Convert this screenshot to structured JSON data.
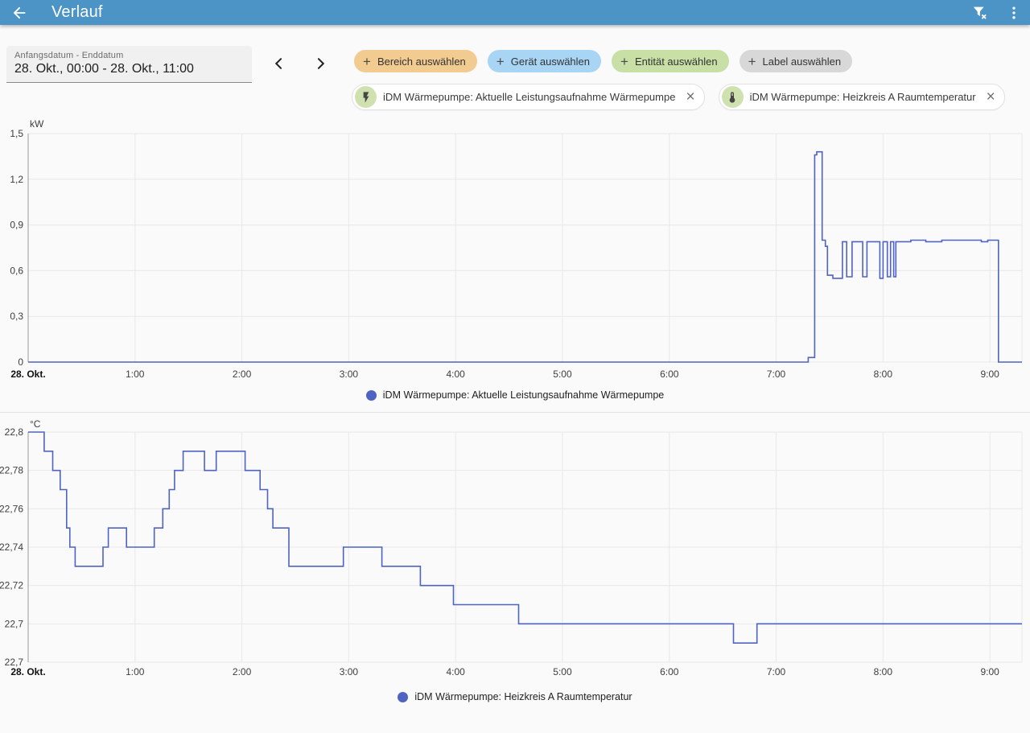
{
  "header": {
    "title": "Verlauf",
    "icons": {
      "back": "arrow-left",
      "filter": "filter-remove",
      "menu": "dots-vertical"
    }
  },
  "toolbar": {
    "date_label": "Anfangsdatum - Enddatum",
    "date_value": "28. Okt., 00:00 - 28. Okt., 11:00",
    "prev_icon": "chevron-left",
    "next_icon": "chevron-right",
    "filter_chips": [
      {
        "label": "Bereich auswählen",
        "color": "#f2cb90",
        "plus": "+"
      },
      {
        "label": "Gerät auswählen",
        "color": "#a9d5f5",
        "plus": "+"
      },
      {
        "label": "Entität auswählen",
        "color": "#c8e0a6",
        "plus": "+"
      },
      {
        "label": "Label auswählen",
        "color": "#d8d8d8",
        "plus": "+"
      }
    ],
    "entity_chips": [
      {
        "icon": "flash",
        "label": "iDM Wärmepumpe: Aktuelle Leistungsaufnahme Wärmepumpe",
        "close": "×",
        "icon_bg": "#cfe1ae"
      },
      {
        "icon": "thermometer",
        "label": "iDM Wärmepumpe: Heizkreis A Raumtemperatur",
        "close": "×",
        "icon_bg": "#cfe1ae"
      }
    ]
  },
  "chart_data": [
    {
      "type": "line",
      "legend": "iDM Wärmepumpe: Aktuelle Leistungsaufnahme Wärmepumpe",
      "unit": "kW",
      "color": "#4f63c2",
      "xlim": [
        0,
        9.3
      ],
      "ylim": [
        0,
        1.5
      ],
      "grid": true,
      "legend_position": "bottom",
      "yticks": [
        {
          "v": 0,
          "label": "0"
        },
        {
          "v": 0.3,
          "label": "0,3"
        },
        {
          "v": 0.6,
          "label": "0,6"
        },
        {
          "v": 0.9,
          "label": "0,9"
        },
        {
          "v": 1.2,
          "label": "1,2"
        },
        {
          "v": 1.5,
          "label": "1,5"
        }
      ],
      "xticks": [
        {
          "v": 0,
          "label": "28. Okt.",
          "bold": true
        },
        {
          "v": 1,
          "label": "1:00"
        },
        {
          "v": 2,
          "label": "2:00"
        },
        {
          "v": 3,
          "label": "3:00"
        },
        {
          "v": 4,
          "label": "4:00"
        },
        {
          "v": 5,
          "label": "5:00"
        },
        {
          "v": 6,
          "label": "6:00"
        },
        {
          "v": 7,
          "label": "7:00"
        },
        {
          "v": 8,
          "label": "8:00"
        },
        {
          "v": 9,
          "label": "9:00"
        }
      ],
      "series": [
        [
          0,
          0
        ],
        [
          7.3,
          0.03
        ],
        [
          7.36,
          1.36
        ],
        [
          7.38,
          1.38
        ],
        [
          7.43,
          0.8
        ],
        [
          7.46,
          0.76
        ],
        [
          7.48,
          0.57
        ],
        [
          7.53,
          0.55
        ],
        [
          7.62,
          0.79
        ],
        [
          7.66,
          0.56
        ],
        [
          7.71,
          0.79
        ],
        [
          7.81,
          0.56
        ],
        [
          7.85,
          0.79
        ],
        [
          7.97,
          0.55
        ],
        [
          8.0,
          0.79
        ],
        [
          8.04,
          0.56
        ],
        [
          8.07,
          0.79
        ],
        [
          8.1,
          0.56
        ],
        [
          8.12,
          0.79
        ],
        [
          8.26,
          0.8
        ],
        [
          8.4,
          0.79
        ],
        [
          8.55,
          0.8
        ],
        [
          8.92,
          0.79
        ],
        [
          8.98,
          0.8
        ],
        [
          9.08,
          0
        ],
        [
          9.3,
          0
        ]
      ]
    },
    {
      "type": "line",
      "legend": "iDM Wärmepumpe: Heizkreis A Raumtemperatur",
      "unit": "°C",
      "color": "#4f63c2",
      "xlim": [
        0,
        9.3
      ],
      "ylim": [
        22.68,
        22.8
      ],
      "grid": true,
      "legend_position": "bottom",
      "yticks": [
        {
          "v": 22.68,
          "label": "22,7"
        },
        {
          "v": 22.7,
          "label": "22,7"
        },
        {
          "v": 22.72,
          "label": "22,72"
        },
        {
          "v": 22.74,
          "label": "22,74"
        },
        {
          "v": 22.76,
          "label": "22,76"
        },
        {
          "v": 22.78,
          "label": "22,78"
        },
        {
          "v": 22.8,
          "label": "22,8"
        }
      ],
      "xticks": [
        {
          "v": 0,
          "label": "28. Okt.",
          "bold": true
        },
        {
          "v": 1,
          "label": "1:00"
        },
        {
          "v": 2,
          "label": "2:00"
        },
        {
          "v": 3,
          "label": "3:00"
        },
        {
          "v": 4,
          "label": "4:00"
        },
        {
          "v": 5,
          "label": "5:00"
        },
        {
          "v": 6,
          "label": "6:00"
        },
        {
          "v": 7,
          "label": "7:00"
        },
        {
          "v": 8,
          "label": "8:00"
        },
        {
          "v": 9,
          "label": "9:00"
        }
      ],
      "series": [
        [
          0,
          22.8
        ],
        [
          0.15,
          22.79
        ],
        [
          0.23,
          22.78
        ],
        [
          0.3,
          22.77
        ],
        [
          0.36,
          22.75
        ],
        [
          0.39,
          22.74
        ],
        [
          0.44,
          22.73
        ],
        [
          0.7,
          22.74
        ],
        [
          0.75,
          22.75
        ],
        [
          0.92,
          22.74
        ],
        [
          1.18,
          22.75
        ],
        [
          1.26,
          22.76
        ],
        [
          1.32,
          22.77
        ],
        [
          1.37,
          22.78
        ],
        [
          1.45,
          22.79
        ],
        [
          1.65,
          22.78
        ],
        [
          1.76,
          22.79
        ],
        [
          2.03,
          22.78
        ],
        [
          2.17,
          22.77
        ],
        [
          2.24,
          22.76
        ],
        [
          2.29,
          22.75
        ],
        [
          2.44,
          22.73
        ],
        [
          2.95,
          22.74
        ],
        [
          3.31,
          22.73
        ],
        [
          3.67,
          22.72
        ],
        [
          3.98,
          22.71
        ],
        [
          4.59,
          22.7
        ],
        [
          6.6,
          22.69
        ],
        [
          6.82,
          22.7
        ],
        [
          9.3,
          22.7
        ]
      ]
    }
  ],
  "colors": {
    "appbar": "#4c93c6",
    "page_bg": "#fafafa",
    "line": "#4f63c2"
  }
}
